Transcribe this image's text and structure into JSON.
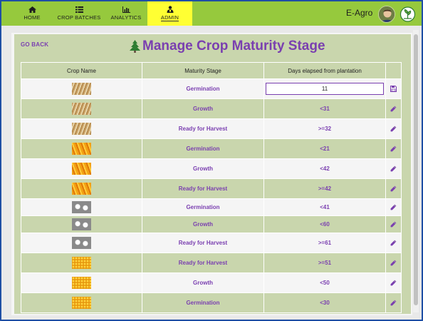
{
  "nav": {
    "items": [
      {
        "label": "HOME",
        "icon": "home-icon"
      },
      {
        "label": "CROP BATCHES",
        "icon": "list-icon"
      },
      {
        "label": "ANALYTICS",
        "icon": "bar-chart-icon"
      },
      {
        "label": "ADMIN",
        "icon": "admin-icon",
        "active": true
      }
    ],
    "brand": "E-Agro",
    "active_color": "#ffff33",
    "bar_color": "#96c93d"
  },
  "page": {
    "go_back": "GO BACK",
    "title": "Manage Crop Maturity Stage",
    "accent_color": "#7a3fb0"
  },
  "table": {
    "headers": [
      "Crop Name",
      "Maturity Stage",
      "Days elapsed from plantation",
      ""
    ],
    "rows": [
      {
        "crop": "wheat",
        "stage": "Germination",
        "days": "11",
        "editing": true
      },
      {
        "crop": "wheat",
        "stage": "Growth",
        "days": "<31"
      },
      {
        "crop": "wheat",
        "stage": "Ready for Harvest",
        "days": ">=32"
      },
      {
        "crop": "corn",
        "stage": "Germination",
        "days": "<21"
      },
      {
        "crop": "corn",
        "stage": "Growth",
        "days": "<42"
      },
      {
        "crop": "corn",
        "stage": "Ready for Harvest",
        "days": ">=42"
      },
      {
        "crop": "cotton",
        "stage": "Germination",
        "days": "<41"
      },
      {
        "crop": "cotton",
        "stage": "Growth",
        "days": "<60"
      },
      {
        "crop": "cotton",
        "stage": "Ready for Harvest",
        "days": ">=61"
      },
      {
        "crop": "maize",
        "stage": "Ready for Harvest",
        "days": ">=51"
      },
      {
        "crop": "maize",
        "stage": "Growth",
        "days": "<50"
      },
      {
        "crop": "maize",
        "stage": "Germination",
        "days": "<30"
      }
    ]
  }
}
